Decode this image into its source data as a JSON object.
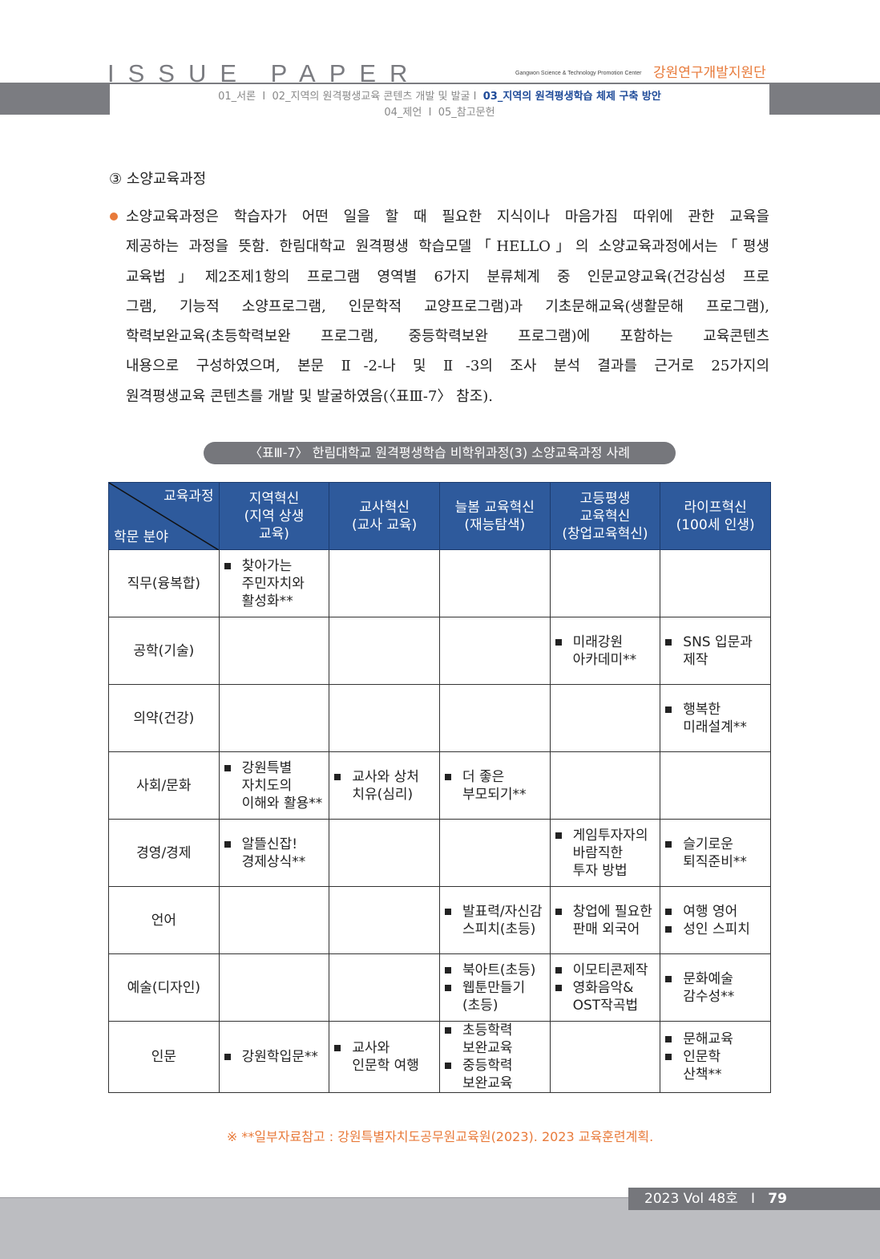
{
  "header": {
    "title": "ISSUE PAPER",
    "center_en": "Gangwon Science & Technology Promotion Center",
    "center_ko": "강원연구개발지원단",
    "nav": [
      "01_서론",
      "02_지역의 원격평생교육 콘텐츠 개발 및 발굴",
      "03_지역의 원격평생학습 체제 구축 방안",
      "04_제언",
      "05_참고문헌"
    ],
    "separator": "I"
  },
  "section_title": "③ 소양교육과정",
  "paragraph_lines": [
    "소양교육과정은 학습자가 어떤 일을 할 때 필요한 지식이나 마음가짐 따위에 관한 교육을",
    "제공하는 과정을 뜻함. 한림대학교 원격평생 학습모델「HELLO」의 소양교육과정에서는「평생",
    "교육법」제2조제1항의 프로그램 영역별 6가지 분류체계 중 인문교양교육(건강심성 프로",
    "그램, 기능적 소양프로그램, 인문학적 교양프로그램)과 기초문해교육(생활문해 프로그램),",
    "학력보완교육(초등학력보완 프로그램, 중등학력보완 프로그램)에 포함하는 교육콘텐츠",
    "내용으로 구성하였으며, 본문 Ⅱ-2-나 및 Ⅱ-3의 조사 분석 결과를 근거로 25가지의",
    "원격평생교육 콘텐츠를 개발 및 발굴하였음(〈표Ⅲ-7〉 참조)."
  ],
  "table": {
    "caption": "〈표Ⅲ-7〉 한림대학교 원격평생학습 비학위과정(3) 소양교육과정 사례",
    "corner_top": "교육과정",
    "corner_bottom": "학문 분야",
    "headers": [
      "지역혁신\n(지역 상생\n교육)",
      "교사혁신\n(교사 교육)",
      "늘봄 교육혁신\n(재능탐색)",
      "고등평생\n교육혁신\n(창업교육혁신)",
      "라이프혁신\n(100세 인생)"
    ],
    "rows": [
      {
        "category": "직무(융복합)",
        "cells": [
          [
            "찾아가는\n주민자치와\n활성화**"
          ],
          [],
          [],
          [],
          []
        ]
      },
      {
        "category": "공학(기술)",
        "cells": [
          [],
          [],
          [],
          [
            "미래강원\n아카데미**"
          ],
          [
            "SNS 입문과\n제작"
          ]
        ]
      },
      {
        "category": "의약(건강)",
        "cells": [
          [],
          [],
          [],
          [],
          [
            "행복한\n미래설계**"
          ]
        ]
      },
      {
        "category": "사회/문화",
        "cells": [
          [
            "강원특별\n자치도의\n이해와 활용**"
          ],
          [
            "교사와 상처\n치유(심리)"
          ],
          [
            "더 좋은\n부모되기**"
          ],
          [],
          []
        ]
      },
      {
        "category": "경영/경제",
        "cells": [
          [
            "알뜰신잡!\n경제상식**"
          ],
          [],
          [],
          [
            "게임투자자의\n바람직한\n투자 방법"
          ],
          [
            "슬기로운\n퇴직준비**"
          ]
        ]
      },
      {
        "category": "언어",
        "cells": [
          [],
          [],
          [
            "발표력/자신감\n스피치(초등)"
          ],
          [
            "창업에 필요한\n판매 외국어"
          ],
          [
            "여행 영어",
            "성인 스피치"
          ]
        ]
      },
      {
        "category": "예술(디자인)",
        "cells": [
          [],
          [],
          [
            "북아트(초등)",
            "웹툰만들기\n(초등)"
          ],
          [
            "이모티콘제작",
            "영화음악&\nOST작곡법"
          ],
          [
            "문화예술\n감수성**"
          ]
        ]
      },
      {
        "category": "인문",
        "cells": [
          [
            "강원학입문**"
          ],
          [
            "교사와\n인문학 여행"
          ],
          [
            "초등학력\n보완교육",
            "중등학력\n보완교육"
          ],
          [],
          [
            "문해교육",
            "인문학\n산책**"
          ]
        ]
      }
    ]
  },
  "note": "※ **일부자료참고 : 강원특별자치도공무원교육원(2023). 2023 교육훈련계획.",
  "footer": {
    "issue": "2023 Vol 48호",
    "separator": "I",
    "page": "79"
  },
  "colors": {
    "accent": "#e87a3a",
    "table_header": "#2e5a9c",
    "nav_current": "#1f4b99",
    "gray_bar": "#7b7c81"
  }
}
